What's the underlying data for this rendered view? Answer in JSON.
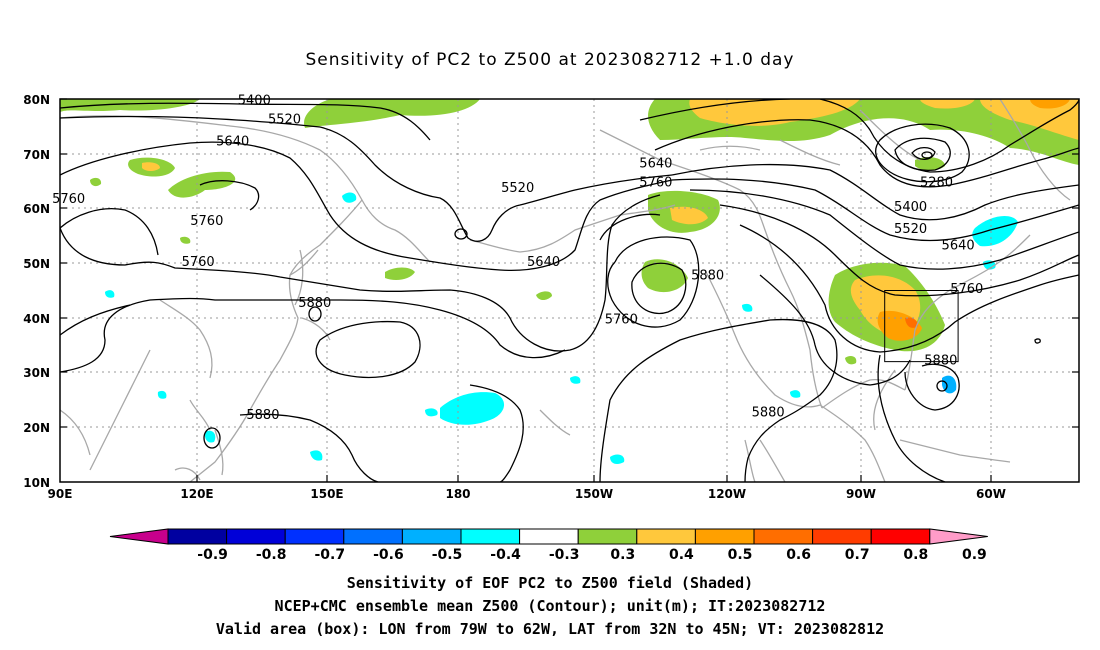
{
  "title": "Sensitivity of PC2 to Z500 at 2023082712 +1.0 day",
  "lat_labels": [
    "80N",
    "70N",
    "60N",
    "50N",
    "40N",
    "30N",
    "20N",
    "10N"
  ],
  "lon_labels": [
    "90E",
    "120E",
    "150E",
    "180",
    "150W",
    "120W",
    "90W",
    "60W"
  ],
  "contour_labels": [
    {
      "text": "5400",
      "lon": 135,
      "lat": 79
    },
    {
      "text": "5520",
      "lon": 142,
      "lat": 75.5
    },
    {
      "text": "5640",
      "lon": 130,
      "lat": 71.5
    },
    {
      "text": "5760",
      "lon": 92,
      "lat": 61
    },
    {
      "text": "5760",
      "lon": 124,
      "lat": 57
    },
    {
      "text": "5760",
      "lon": 122,
      "lat": 49.5
    },
    {
      "text": "5880",
      "lon": 149,
      "lat": 42
    },
    {
      "text": "5880",
      "lon": 137,
      "lat": 21.5
    },
    {
      "text": "5520",
      "lon": 196,
      "lat": 63
    },
    {
      "text": "5640",
      "lon": 202,
      "lat": 49.5
    },
    {
      "text": "5640",
      "lon": 228,
      "lat": 67.5
    },
    {
      "text": "5760",
      "lon": 228,
      "lat": 64
    },
    {
      "text": "5760",
      "lon": 220,
      "lat": 39
    },
    {
      "text": "5880",
      "lon": 240,
      "lat": 47
    },
    {
      "text": "5880",
      "lon": 254,
      "lat": 22
    },
    {
      "text": "5280",
      "lon": 293,
      "lat": 64
    },
    {
      "text": "5400",
      "lon": 287,
      "lat": 59.5
    },
    {
      "text": "5520",
      "lon": 287,
      "lat": 55.5
    },
    {
      "text": "5640",
      "lon": 298,
      "lat": 52.5
    },
    {
      "text": "5760",
      "lon": 300,
      "lat": 44.5
    },
    {
      "text": "5880",
      "lon": 294,
      "lat": 31.5
    }
  ],
  "colorbar": {
    "labels": [
      "-0.9",
      "-0.8",
      "-0.7",
      "-0.6",
      "-0.5",
      "-0.4",
      "-0.3",
      "0.3",
      "0.4",
      "0.5",
      "0.6",
      "0.7",
      "0.8",
      "0.9"
    ],
    "colors": [
      "#0000a0",
      "#0000d8",
      "#0030ff",
      "#0070ff",
      "#00b0ff",
      "#00ffff",
      "#ffffff",
      "#8fd03a",
      "#ffc83c",
      "#ffa000",
      "#ff6e00",
      "#ff3c00",
      "#ff0000"
    ],
    "left_arrow_color": "#c8008c",
    "right_arrow_color": "#ff9cc8"
  },
  "footer": {
    "line1": "Sensitivity of EOF PC2 to Z500 field (Shaded)",
    "line2": "NCEP+CMC ensemble mean Z500 (Contour); unit(m); IT:2023082712",
    "line3": "Valid area (box): LON from 79W to 62W, LAT from 32N to 45N; VT: 2023082812"
  },
  "valid_box": {
    "lon_min": 281,
    "lon_max": 298,
    "lat_min": 32,
    "lat_max": 45
  }
}
